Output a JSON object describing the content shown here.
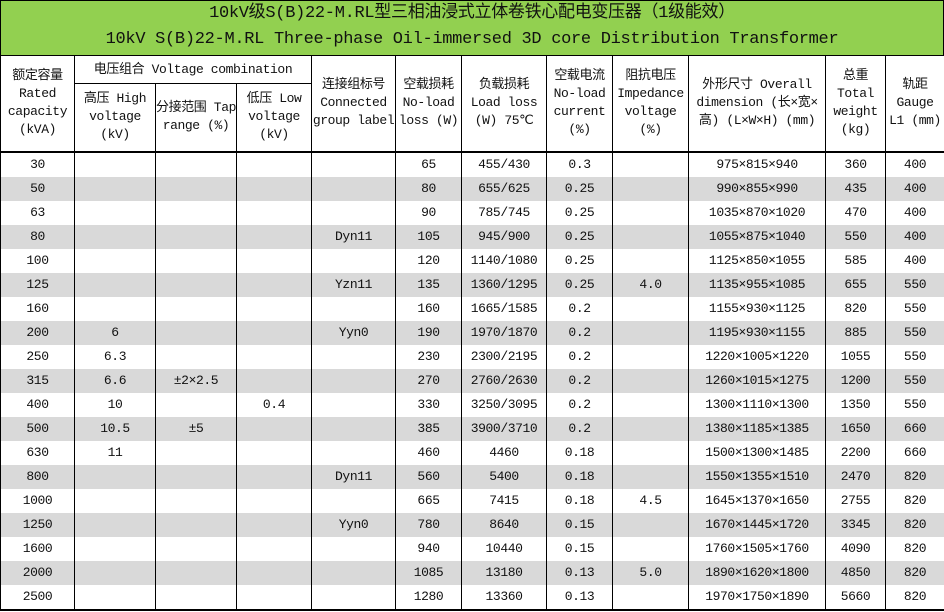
{
  "title": {
    "cn": "10kV级S(B)22-M.RL型三相油浸式立体卷铁心配电变压器（1级能效）",
    "en": "10kV S(B)22-M.RL Three-phase Oil-immersed 3D core Distribution Transformer"
  },
  "colors": {
    "title_bg": "#92d050",
    "row_alt": "#d9d9d9"
  },
  "headers": {
    "rated_capacity": "额定容量 Rated capacity (kVA)",
    "voltage_combination": "电压组合 Voltage combination",
    "high_voltage": "高压 High voltage (kV)",
    "tap_range": "分接范围 Tap range (%)",
    "low_voltage": "低压 Low voltage (kV)",
    "group_label": "连接组标号 Connected group label",
    "noload_loss": "空载损耗 No-load loss (W)",
    "load_loss": "负载损耗 Load loss (W) 75℃",
    "noload_current": "空载电流 No-load current (%)",
    "impedance": "阻抗电压 Impedance voltage (%)",
    "dimension": "外形尺寸 Overall dimension (长×宽×高) (L×W×H) (mm)",
    "weight": "总重 Total weight (kg)",
    "gauge": "轨距 Gauge L1 (mm)"
  },
  "rows": [
    [
      "30",
      "",
      "",
      "",
      "",
      "65",
      "455/430",
      "0.3",
      "",
      "975×815×940",
      "360",
      "400"
    ],
    [
      "50",
      "",
      "",
      "",
      "",
      "80",
      "655/625",
      "0.25",
      "",
      "990×855×990",
      "435",
      "400"
    ],
    [
      "63",
      "",
      "",
      "",
      "",
      "90",
      "785/745",
      "0.25",
      "",
      "1035×870×1020",
      "470",
      "400"
    ],
    [
      "80",
      "",
      "",
      "",
      "Dyn11",
      "105",
      "945/900",
      "0.25",
      "",
      "1055×875×1040",
      "550",
      "400"
    ],
    [
      "100",
      "",
      "",
      "",
      "",
      "120",
      "1140/1080",
      "0.25",
      "",
      "1125×850×1055",
      "585",
      "400"
    ],
    [
      "125",
      "",
      "",
      "",
      "Yzn11",
      "135",
      "1360/1295",
      "0.25",
      "4.0",
      "1135×955×1085",
      "655",
      "550"
    ],
    [
      "160",
      "",
      "",
      "",
      "",
      "160",
      "1665/1585",
      "0.2",
      "",
      "1155×930×1125",
      "820",
      "550"
    ],
    [
      "200",
      "6",
      "",
      "",
      "Yyn0",
      "190",
      "1970/1870",
      "0.2",
      "",
      "1195×930×1155",
      "885",
      "550"
    ],
    [
      "250",
      "6.3",
      "",
      "",
      "",
      "230",
      "2300/2195",
      "0.2",
      "",
      "1220×1005×1220",
      "1055",
      "550"
    ],
    [
      "315",
      "6.6",
      "±2×2.5",
      "",
      "",
      "270",
      "2760/2630",
      "0.2",
      "",
      "1260×1015×1275",
      "1200",
      "550"
    ],
    [
      "400",
      "10",
      "",
      "0.4",
      "",
      "330",
      "3250/3095",
      "0.2",
      "",
      "1300×1110×1300",
      "1350",
      "550"
    ],
    [
      "500",
      "10.5",
      "±5",
      "",
      "",
      "385",
      "3900/3710",
      "0.2",
      "",
      "1380×1185×1385",
      "1650",
      "660"
    ],
    [
      "630",
      "11",
      "",
      "",
      "",
      "460",
      "4460",
      "0.18",
      "",
      "1500×1300×1485",
      "2200",
      "660"
    ],
    [
      "800",
      "",
      "",
      "",
      "Dyn11",
      "560",
      "5400",
      "0.18",
      "",
      "1550×1355×1510",
      "2470",
      "820"
    ],
    [
      "1000",
      "",
      "",
      "",
      "",
      "665",
      "7415",
      "0.18",
      "4.5",
      "1645×1370×1650",
      "2755",
      "820"
    ],
    [
      "1250",
      "",
      "",
      "",
      "Yyn0",
      "780",
      "8640",
      "0.15",
      "",
      "1670×1445×1720",
      "3345",
      "820"
    ],
    [
      "1600",
      "",
      "",
      "",
      "",
      "940",
      "10440",
      "0.15",
      "",
      "1760×1505×1760",
      "4090",
      "820"
    ],
    [
      "2000",
      "",
      "",
      "",
      "",
      "1085",
      "13180",
      "0.13",
      "5.0",
      "1890×1620×1800",
      "4850",
      "820"
    ],
    [
      "2500",
      "",
      "",
      "",
      "",
      "1280",
      "13360",
      "0.13",
      "",
      "1970×1750×1890",
      "5660",
      "820"
    ]
  ]
}
